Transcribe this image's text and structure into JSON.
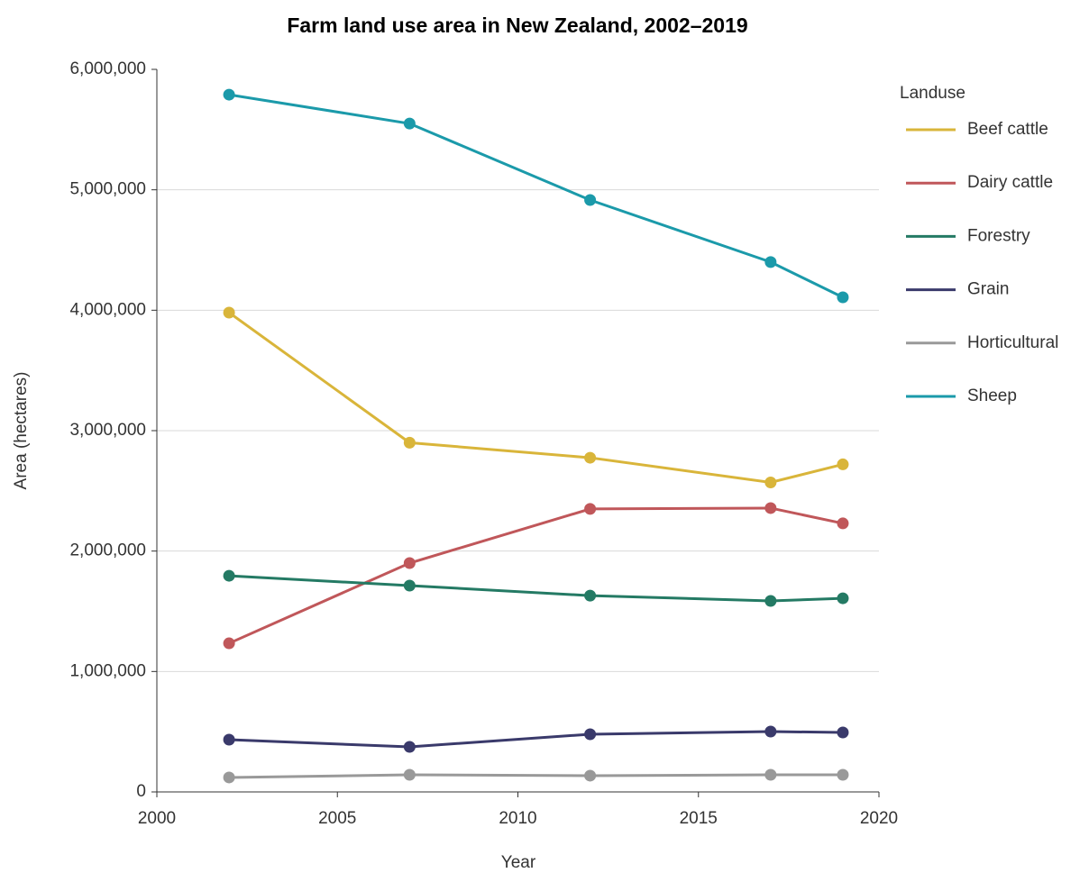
{
  "chart_data": {
    "type": "line",
    "title": "Farm land use area in New Zealand, 2002–2019",
    "x_label": "Year",
    "y_label": "Area (hectares)",
    "legend_title": "Landuse",
    "legend": "right",
    "grid": true,
    "x": [
      2002,
      2007,
      2012,
      2017,
      2019
    ],
    "xlim": [
      2000,
      2020
    ],
    "xticks": [
      2000,
      2005,
      2010,
      2015,
      2020
    ],
    "ylim": [
      0,
      6000000
    ],
    "yticks": [
      0,
      {
        "value": 1000000,
        "label": "1,000,000"
      },
      {
        "value": 2000000,
        "label": "2,000,000"
      },
      {
        "value": 3000000,
        "label": "3,000,000"
      },
      {
        "value": 4000000,
        "label": "4,000,000"
      },
      {
        "value": 5000000,
        "label": "5,000,000"
      },
      {
        "value": 6000000,
        "label": "6,000,000"
      }
    ],
    "series": [
      {
        "name": "Beef cattle",
        "color": "#d9b53a",
        "values": [
          3980000,
          2900000,
          2775000,
          2570000,
          2720000
        ]
      },
      {
        "name": "Dairy cattle",
        "color": "#c0575a",
        "values": [
          1234000,
          1900000,
          2350000,
          2357000,
          2230000
        ]
      },
      {
        "name": "Forestry",
        "color": "#247a64",
        "values": [
          1795000,
          1713000,
          1630000,
          1586000,
          1608000
        ]
      },
      {
        "name": "Grain",
        "color": "#3a3a6b",
        "values": [
          434000,
          374000,
          479000,
          501000,
          494000
        ]
      },
      {
        "name": "Horticultural",
        "color": "#999999",
        "values": [
          120000,
          142000,
          135000,
          142000,
          142000
        ]
      },
      {
        "name": "Sheep",
        "color": "#1b9aaa",
        "values": [
          5790000,
          5550000,
          4915000,
          4400000,
          4107000
        ]
      }
    ]
  }
}
